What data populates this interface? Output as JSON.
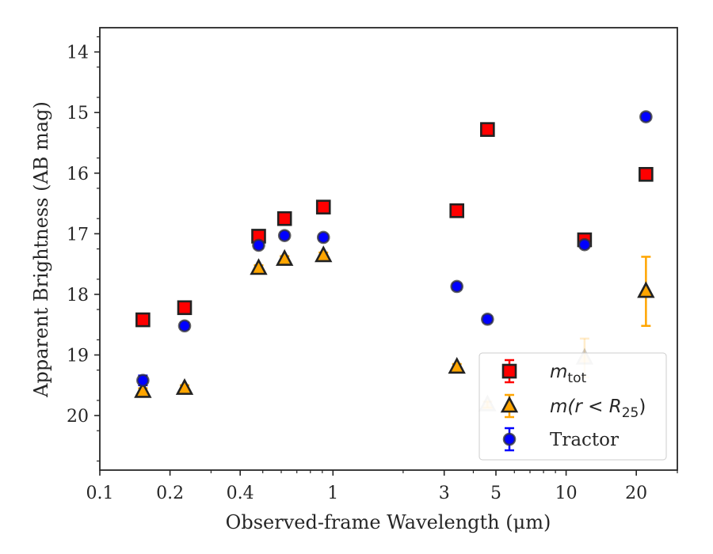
{
  "chart_data": {
    "type": "scatter",
    "xlabel": "Observed-frame Wavelength (μm)",
    "ylabel": "Apparent Brightness (AB mag)",
    "x_scale": "log",
    "xlim": [
      0.1,
      30
    ],
    "ylim": [
      20.9,
      13.6
    ],
    "y_inverted": true,
    "x_ticks": [
      {
        "value": 0.1,
        "label": "0.1"
      },
      {
        "value": 0.2,
        "label": "0.2"
      },
      {
        "value": 0.4,
        "label": "0.4"
      },
      {
        "value": 1,
        "label": "1"
      },
      {
        "value": 3,
        "label": "3"
      },
      {
        "value": 5,
        "label": "5"
      },
      {
        "value": 10,
        "label": "10"
      },
      {
        "value": 20,
        "label": "20"
      }
    ],
    "y_ticks": [
      {
        "value": 14,
        "label": "14"
      },
      {
        "value": 15,
        "label": "15"
      },
      {
        "value": 16,
        "label": "16"
      },
      {
        "value": 17,
        "label": "17"
      },
      {
        "value": 18,
        "label": "18"
      },
      {
        "value": 19,
        "label": "19"
      },
      {
        "value": 20,
        "label": "20"
      }
    ],
    "grid": false,
    "legend_position": "lower-right",
    "series": [
      {
        "key": "mtot",
        "marker": "square",
        "face_color": "#ff0000",
        "edge_color": "#222222",
        "error_color": "#ff0000",
        "legend_main": "m",
        "legend_sub": "tot",
        "points": [
          {
            "x": 0.153,
            "y": 18.42,
            "err": 0.05,
            "faded": false
          },
          {
            "x": 0.231,
            "y": 18.22,
            "err": 0.05,
            "faded": false
          },
          {
            "x": 0.48,
            "y": 17.04,
            "err": 0.05,
            "faded": false
          },
          {
            "x": 0.62,
            "y": 16.75,
            "err": 0.05,
            "faded": false
          },
          {
            "x": 0.91,
            "y": 16.56,
            "err": 0.05,
            "faded": false
          },
          {
            "x": 3.4,
            "y": 16.62,
            "err": 0.05,
            "faded": false
          },
          {
            "x": 4.6,
            "y": 15.28,
            "err": 0.05,
            "faded": false
          },
          {
            "x": 12.0,
            "y": 17.1,
            "err": 0.05,
            "faded": false
          },
          {
            "x": 22.0,
            "y": 16.02,
            "err": 0.05,
            "faded": false
          }
        ]
      },
      {
        "key": "mr25",
        "marker": "triangle",
        "face_color": "#ffa500",
        "edge_color": "#222222",
        "error_color": "#ffa500",
        "legend_main": "m(r < R",
        "legend_sub": "25",
        "legend_tail": ")",
        "points": [
          {
            "x": 0.153,
            "y": 19.6,
            "err": 0.05,
            "faded": false
          },
          {
            "x": 0.231,
            "y": 19.55,
            "err": 0.05,
            "faded": false
          },
          {
            "x": 0.48,
            "y": 17.57,
            "err": 0.05,
            "faded": false
          },
          {
            "x": 0.62,
            "y": 17.42,
            "err": 0.05,
            "faded": false
          },
          {
            "x": 0.91,
            "y": 17.36,
            "err": 0.05,
            "faded": false
          },
          {
            "x": 3.4,
            "y": 19.2,
            "err": 0.05,
            "faded": false
          },
          {
            "x": 4.6,
            "y": 19.82,
            "err": 0.05,
            "faded": true
          },
          {
            "x": 12.0,
            "y": 19.05,
            "err": 0.32,
            "faded": true
          },
          {
            "x": 22.0,
            "y": 17.95,
            "err": 0.57,
            "faded": false
          }
        ]
      },
      {
        "key": "tractor",
        "marker": "circle",
        "face_color": "#0000ff",
        "edge_color": "#333333",
        "error_color": "#0000ff",
        "legend_main": "Tractor",
        "points": [
          {
            "x": 0.153,
            "y": 19.42,
            "err": 0.08,
            "faded": false
          },
          {
            "x": 0.231,
            "y": 18.52,
            "err": 0.05,
            "faded": false
          },
          {
            "x": 0.48,
            "y": 17.19,
            "err": 0.05,
            "faded": false
          },
          {
            "x": 0.62,
            "y": 17.03,
            "err": 0.05,
            "faded": false
          },
          {
            "x": 0.91,
            "y": 17.06,
            "err": 0.05,
            "faded": false
          },
          {
            "x": 3.4,
            "y": 17.87,
            "err": 0.05,
            "faded": false
          },
          {
            "x": 4.6,
            "y": 18.41,
            "err": 0.05,
            "faded": false
          },
          {
            "x": 12.0,
            "y": 17.18,
            "err": 0.05,
            "faded": false
          },
          {
            "x": 22.0,
            "y": 15.07,
            "err": 0.05,
            "faded": false
          }
        ]
      }
    ]
  }
}
